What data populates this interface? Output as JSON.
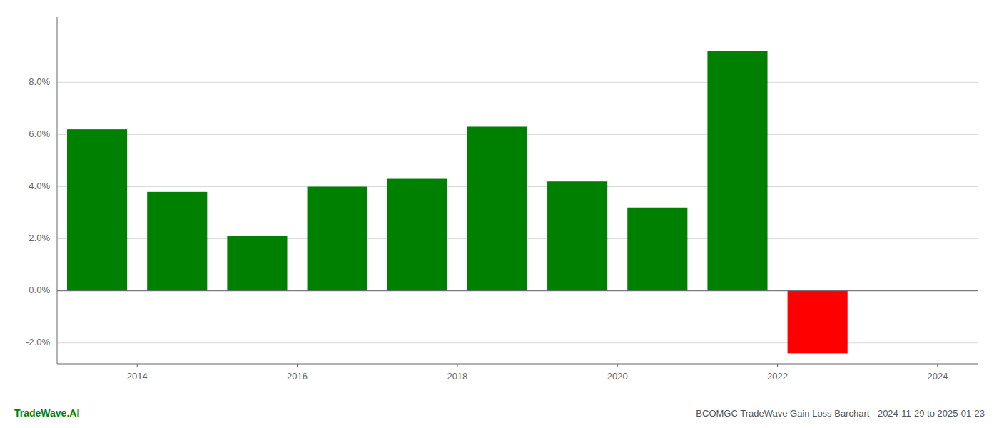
{
  "chart_data": {
    "type": "bar",
    "title": "BCOMGC TradeWave Gain Loss Barchart - 2024-11-29 to 2025-01-23",
    "annotations": [
      "TradeWave.AI"
    ],
    "x": [
      2013.5,
      2014.5,
      2015.5,
      2016.5,
      2017.5,
      2018.5,
      2019.5,
      2020.5,
      2021.5,
      2022.5
    ],
    "values": [
      0.062,
      0.038,
      0.021,
      0.04,
      0.043,
      0.063,
      0.042,
      0.032,
      0.092,
      -0.024
    ],
    "colors": [
      "#008000",
      "#008000",
      "#008000",
      "#008000",
      "#008000",
      "#008000",
      "#008000",
      "#008000",
      "#008000",
      "#ff0000"
    ],
    "xlim": [
      2013.0,
      2024.5
    ],
    "xticks": [
      2014,
      2016,
      2018,
      2020,
      2022,
      2024
    ],
    "ylim": [
      -0.028,
      0.105
    ],
    "yticks": [
      {
        "value": -0.02,
        "label": "-2.0%"
      },
      {
        "value": 0.0,
        "label": "0.0%"
      },
      {
        "value": 0.02,
        "label": "2.0%"
      },
      {
        "value": 0.04,
        "label": "4.0%"
      },
      {
        "value": 0.06,
        "label": "6.0%"
      },
      {
        "value": 0.08,
        "label": "8.0%"
      }
    ],
    "grid": true
  }
}
